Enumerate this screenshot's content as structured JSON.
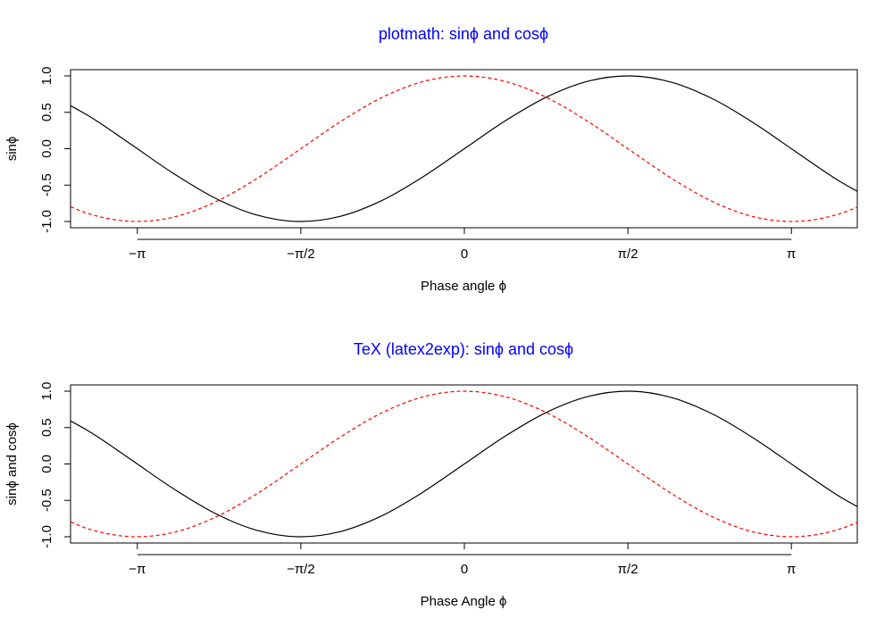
{
  "chart_data": [
    {
      "type": "line",
      "title": "plotmath: sinϕ and cosϕ",
      "title_color": "#0000ff",
      "xlabel": "Phase angle ϕ",
      "ylabel": "sinϕ",
      "xlim": [
        -4.0,
        4.0
      ],
      "ylim": [
        -1.0,
        1.0
      ],
      "x_ticks": [
        {
          "value": -3.141593,
          "label": "−π"
        },
        {
          "value": -1.570796,
          "label": "−π/2"
        },
        {
          "value": 0,
          "label": "0"
        },
        {
          "value": 1.570796,
          "label": "π/2"
        },
        {
          "value": 3.141593,
          "label": "π"
        }
      ],
      "y_ticks": [
        {
          "value": -1.0,
          "label": "-1.0"
        },
        {
          "value": -0.5,
          "label": "-0.5"
        },
        {
          "value": 0.0,
          "label": "0.0"
        },
        {
          "value": 0.5,
          "label": "0.5"
        },
        {
          "value": 1.0,
          "label": "1.0"
        }
      ],
      "grid": false,
      "series": [
        {
          "color": "#000000",
          "dash": "solid",
          "x": [
            -4.0,
            -3.6,
            -3.2,
            -2.8,
            -2.4,
            -2.0,
            -1.6,
            -1.2,
            -0.8,
            -0.4,
            0.0,
            0.4,
            0.8,
            1.2,
            1.6,
            2.0,
            2.4,
            2.8,
            3.2,
            3.6,
            4.0
          ],
          "y": [
            0.757,
            0.443,
            0.058,
            -0.335,
            -0.675,
            -0.909,
            -1.0,
            -0.932,
            -0.717,
            -0.389,
            0.0,
            0.389,
            0.717,
            0.932,
            1.0,
            0.909,
            0.675,
            0.335,
            -0.058,
            -0.443,
            -0.757
          ]
        },
        {
          "color": "#ff0000",
          "dash": "dashed",
          "x": [
            -4.0,
            -3.6,
            -3.2,
            -2.8,
            -2.4,
            -2.0,
            -1.6,
            -1.2,
            -0.8,
            -0.4,
            0.0,
            0.4,
            0.8,
            1.2,
            1.6,
            2.0,
            2.4,
            2.8,
            3.2,
            3.6,
            4.0
          ],
          "y": [
            -0.654,
            -0.897,
            -0.998,
            -0.942,
            -0.737,
            -0.416,
            -0.029,
            0.362,
            0.697,
            0.921,
            1.0,
            0.921,
            0.697,
            0.362,
            -0.029,
            -0.416,
            -0.737,
            -0.942,
            -0.998,
            -0.897,
            -0.654
          ]
        }
      ]
    },
    {
      "type": "line",
      "title": "TeX (latex2exp): sinϕ and cosϕ",
      "title_color": "#0000ff",
      "xlabel": "Phase Angle ϕ",
      "ylabel": "sinϕ and cosϕ",
      "xlim": [
        -4.0,
        4.0
      ],
      "ylim": [
        -1.0,
        1.0
      ],
      "x_ticks": [
        {
          "value": -3.141593,
          "label": "−π"
        },
        {
          "value": -1.570796,
          "label": "−π/2"
        },
        {
          "value": 0,
          "label": "0"
        },
        {
          "value": 1.570796,
          "label": "π/2"
        },
        {
          "value": 3.141593,
          "label": "π"
        }
      ],
      "y_ticks": [
        {
          "value": -1.0,
          "label": "-1.0"
        },
        {
          "value": -0.5,
          "label": "-0.5"
        },
        {
          "value": 0.0,
          "label": "0.0"
        },
        {
          "value": 0.5,
          "label": "0.5"
        },
        {
          "value": 1.0,
          "label": "1.0"
        }
      ],
      "grid": false,
      "series": [
        {
          "color": "#000000",
          "dash": "solid",
          "x": [
            -4.0,
            -3.6,
            -3.2,
            -2.8,
            -2.4,
            -2.0,
            -1.6,
            -1.2,
            -0.8,
            -0.4,
            0.0,
            0.4,
            0.8,
            1.2,
            1.6,
            2.0,
            2.4,
            2.8,
            3.2,
            3.6,
            4.0
          ],
          "y": [
            0.757,
            0.443,
            0.058,
            -0.335,
            -0.675,
            -0.909,
            -1.0,
            -0.932,
            -0.717,
            -0.389,
            0.0,
            0.389,
            0.717,
            0.932,
            1.0,
            0.909,
            0.675,
            0.335,
            -0.058,
            -0.443,
            -0.757
          ]
        },
        {
          "color": "#ff0000",
          "dash": "dashed",
          "x": [
            -4.0,
            -3.6,
            -3.2,
            -2.8,
            -2.4,
            -2.0,
            -1.6,
            -1.2,
            -0.8,
            -0.4,
            0.0,
            0.4,
            0.8,
            1.2,
            1.6,
            2.0,
            2.4,
            2.8,
            3.2,
            3.6,
            4.0
          ],
          "y": [
            -0.654,
            -0.897,
            -0.998,
            -0.942,
            -0.737,
            -0.416,
            -0.029,
            0.362,
            0.697,
            0.921,
            1.0,
            0.921,
            0.697,
            0.362,
            -0.029,
            -0.416,
            -0.737,
            -0.942,
            -0.998,
            -0.897,
            -0.654
          ]
        }
      ]
    }
  ]
}
